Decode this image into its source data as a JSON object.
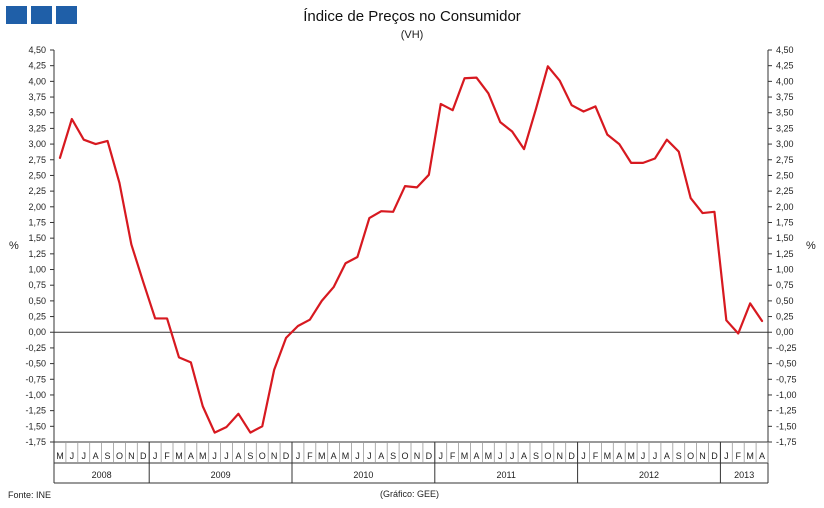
{
  "chart_data": {
    "type": "line",
    "title": "Índice de Preços no Consumidor",
    "subtitle": "(VH)",
    "ylabel": "%",
    "ylim": [
      -1.75,
      4.5
    ],
    "yticks": [
      "4,50",
      "4,25",
      "4,00",
      "3,75",
      "3,50",
      "3,25",
      "3,00",
      "2,75",
      "2,50",
      "2,25",
      "2,00",
      "1,75",
      "1,50",
      "1,25",
      "1,00",
      "0,75",
      "0,50",
      "0,25",
      "0,00",
      "-0,25",
      "-0,50",
      "-0,75",
      "-1,00",
      "-1,25",
      "-1,50",
      "-1,75"
    ],
    "month_labels": [
      "M",
      "J",
      "J",
      "A",
      "S",
      "O",
      "N",
      "D",
      "J",
      "F",
      "M",
      "A",
      "M",
      "J",
      "J",
      "A",
      "S",
      "O",
      "N",
      "D",
      "J",
      "F",
      "M",
      "A",
      "M",
      "J",
      "J",
      "A",
      "S",
      "O",
      "N",
      "D",
      "J",
      "F",
      "M",
      "A",
      "M",
      "J",
      "J",
      "A",
      "S",
      "O",
      "N",
      "D",
      "J",
      "F",
      "M",
      "A",
      "M",
      "J",
      "J",
      "A",
      "S",
      "O",
      "N",
      "D",
      "J",
      "F",
      "M",
      "A"
    ],
    "years": [
      {
        "label": "2008",
        "start": 0,
        "count": 8
      },
      {
        "label": "2009",
        "start": 8,
        "count": 12
      },
      {
        "label": "2010",
        "start": 20,
        "count": 12
      },
      {
        "label": "2011",
        "start": 32,
        "count": 12
      },
      {
        "label": "2012",
        "start": 44,
        "count": 12
      },
      {
        "label": "2013",
        "start": 56,
        "count": 4
      }
    ],
    "series": [
      {
        "color": "#d71920",
        "values": [
          2.78,
          3.4,
          3.07,
          3.0,
          3.05,
          2.38,
          1.4,
          0.8,
          0.22,
          0.22,
          -0.4,
          -0.48,
          -1.18,
          -1.6,
          -1.51,
          -1.3,
          -1.6,
          -1.5,
          -0.6,
          -0.09,
          0.1,
          0.2,
          0.5,
          0.72,
          1.1,
          1.2,
          1.82,
          1.93,
          1.92,
          2.33,
          2.31,
          2.51,
          3.64,
          3.54,
          4.05,
          4.06,
          3.81,
          3.35,
          3.2,
          2.92,
          3.56,
          4.24,
          4.01,
          3.62,
          3.52,
          3.6,
          3.15,
          3.0,
          2.7,
          2.7,
          2.77,
          3.07,
          2.88,
          2.14,
          1.9,
          1.92,
          0.19,
          -0.02,
          0.46,
          0.18
        ]
      }
    ],
    "grid": false
  },
  "footer": {
    "source": "Fonte:  INE",
    "credit": "(Gráfico:  GEE)"
  }
}
